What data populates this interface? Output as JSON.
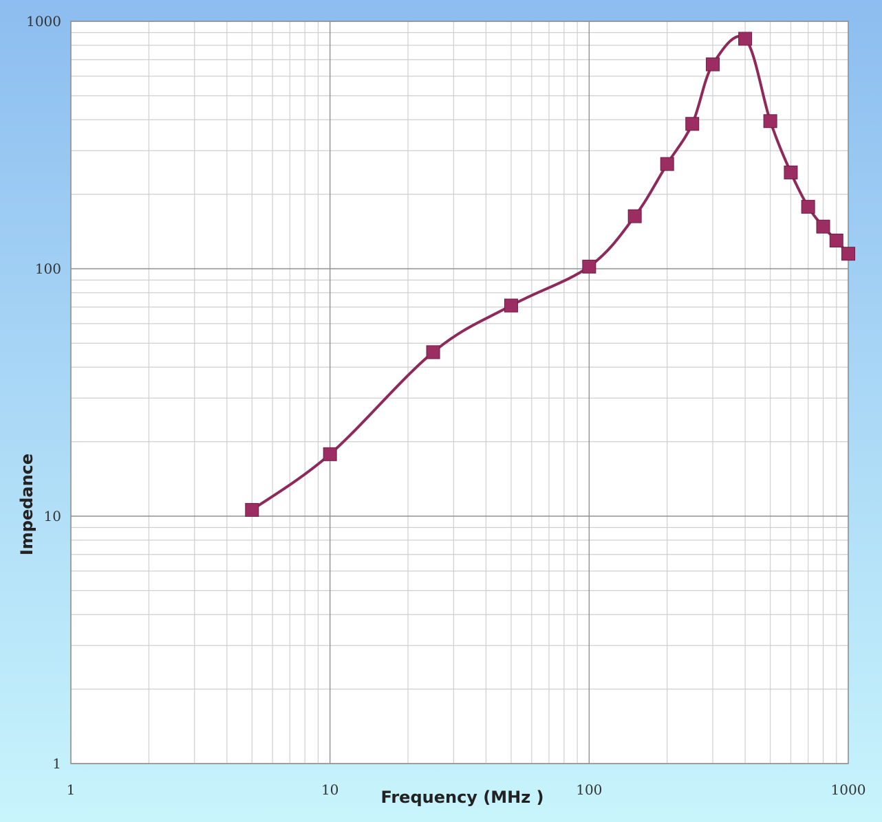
{
  "chart_data": {
    "type": "line",
    "title": "",
    "xlabel": "Frequency (MHz )",
    "ylabel": "Impedance",
    "xscale": "log",
    "yscale": "log",
    "xlim": [
      1,
      1000
    ],
    "ylim": [
      1,
      1000
    ],
    "grid": true,
    "legend": "none",
    "x_tick_labels": [
      "1",
      "10",
      "100",
      "1000"
    ],
    "y_tick_labels": [
      "1",
      "10",
      "100",
      "1000"
    ],
    "series": [
      {
        "x": [
          5,
          10,
          25,
          50,
          100,
          150,
          200,
          250,
          300,
          400,
          500,
          600,
          700,
          800,
          900,
          1000
        ],
        "y": [
          10.6,
          17.8,
          46,
          71,
          102,
          163,
          265,
          385,
          670,
          850,
          395,
          245,
          178,
          148,
          130,
          115
        ]
      }
    ],
    "colors": {
      "line": "#8e2a5b",
      "marker": "#9b2d62",
      "background_top": "#8dbdf0",
      "background_bottom": "#c8f4fc",
      "plot_background": "#ffffff",
      "grid_major": "#909090",
      "grid_minor": "#cfcfcf"
    }
  }
}
